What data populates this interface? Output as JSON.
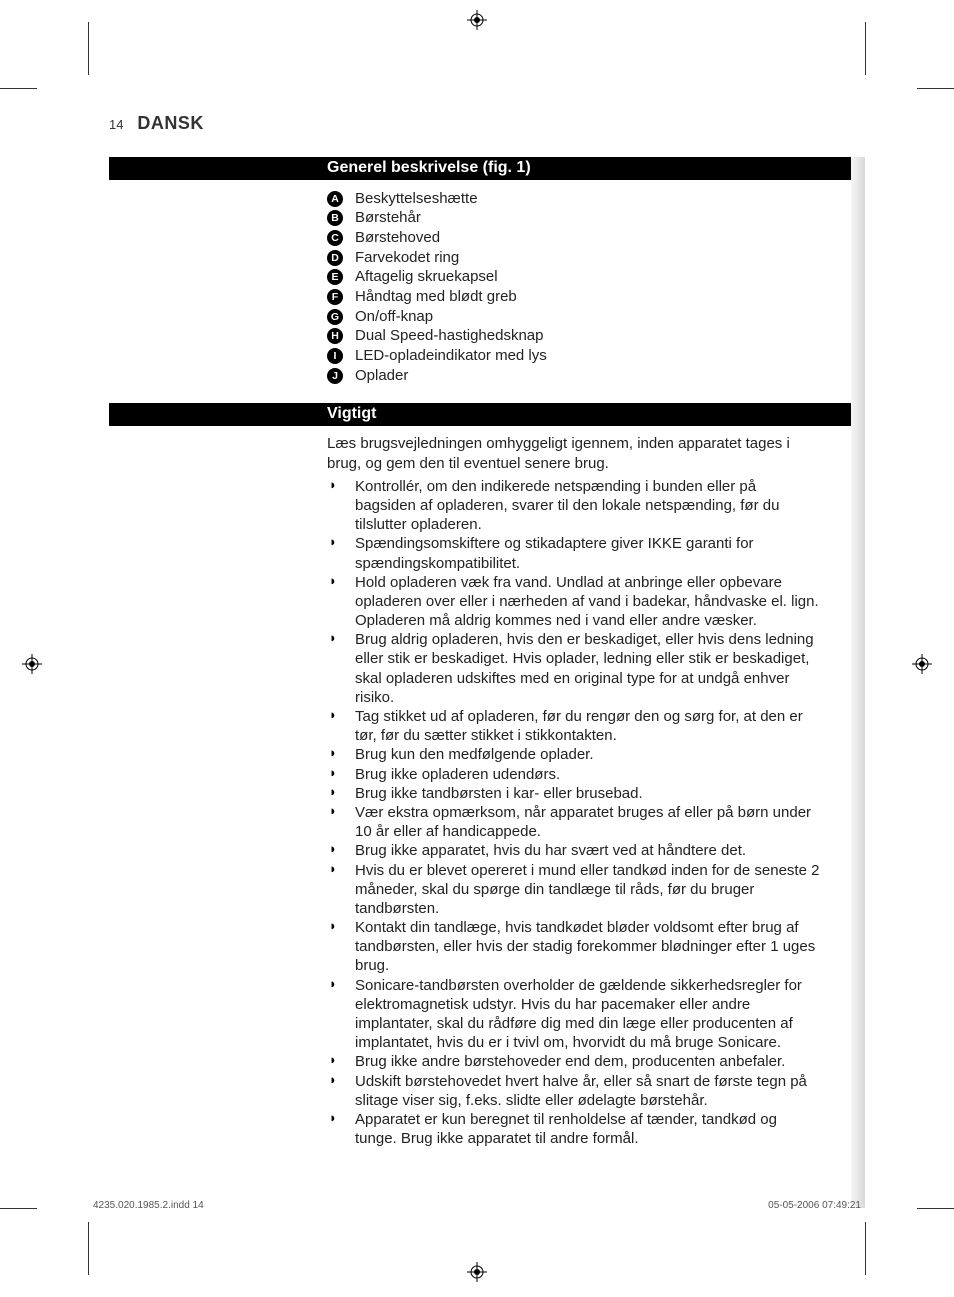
{
  "page_number": "14",
  "language_header": "DANSK",
  "section1": {
    "title": "Generel beskrivelse (fig. 1)",
    "items": [
      {
        "letter": "A",
        "text": "Beskyttelseshætte"
      },
      {
        "letter": "B",
        "text": "Børstehår"
      },
      {
        "letter": "C",
        "text": "Børstehoved"
      },
      {
        "letter": "D",
        "text": "Farvekodet ring"
      },
      {
        "letter": "E",
        "text": "Aftagelig skruekapsel"
      },
      {
        "letter": "F",
        "text": "Håndtag med blødt greb"
      },
      {
        "letter": "G",
        "text": "On/off-knap"
      },
      {
        "letter": "H",
        "text": "Dual Speed-hastighedsknap"
      },
      {
        "letter": "I",
        "text": "LED-opladeindikator med lys"
      },
      {
        "letter": "J",
        "text": "Oplader"
      }
    ]
  },
  "section2": {
    "title": "Vigtigt",
    "intro": "Læs brugsvejledningen omhyggeligt igennem, inden apparatet tages i brug, og gem den til eventuel senere brug.",
    "bullets": [
      "Kontrollér, om den indikerede netspænding i bunden eller på bagsiden af opladeren, svarer til den lokale netspænding, før du tilslutter opladeren.",
      "Spændingsomskiftere og stikadaptere giver IKKE garanti for spændingskompatibilitet.",
      "Hold opladeren væk fra vand. Undlad at anbringe eller opbevare opladeren over eller i nærheden af vand i badekar, håndvaske el. lign. Opladeren må aldrig kommes ned i vand eller andre væsker.",
      "Brug aldrig opladeren, hvis den er beskadiget, eller hvis dens ledning eller stik er beskadiget. Hvis oplader, ledning eller stik er beskadiget, skal opladeren udskiftes med en original type for at undgå enhver risiko.",
      "Tag stikket ud af opladeren, før du rengør den og sørg for, at den er tør, før du sætter stikket i stikkontakten.",
      "Brug kun den medfølgende oplader.",
      "Brug ikke opladeren  udendørs.",
      "Brug ikke tandbørsten i kar- eller brusebad.",
      "Vær ekstra opmærksom, når apparatet bruges af eller på børn under 10 år eller af handicappede.",
      " Brug ikke apparatet, hvis du har svært ved at håndtere det.",
      "Hvis du er blevet opereret i mund eller tandkød inden for de seneste 2 måneder, skal du spørge din tandlæge til råds, før du bruger tandbørsten.",
      "Kontakt din tandlæge, hvis tandkødet bløder voldsomt efter brug af tandbørsten, eller hvis der stadig forekommer blødninger efter 1 uges brug.",
      "Sonicare-tandbørsten overholder de gældende sikkerhedsregler for elektromagnetisk udstyr. Hvis du har pacemaker eller andre implantater, skal du rådføre dig med din læge eller producenten af implantatet, hvis du er i tvivl om, hvorvidt du må bruge Sonicare.",
      "Brug ikke andre børstehoveder end dem, producenten anbefaler.",
      "Udskift børstehovedet hvert halve år, eller så snart de første tegn på slitage viser sig, f.eks. slidte eller ødelagte børstehår.",
      "Apparatet er kun beregnet til renholdelse af tænder, tandkød og tunge. Brug ikke apparatet til andre formål."
    ]
  },
  "footer_left": "4235.020.1985.2.indd   14",
  "footer_right": "05-05-2006   07:49:21"
}
